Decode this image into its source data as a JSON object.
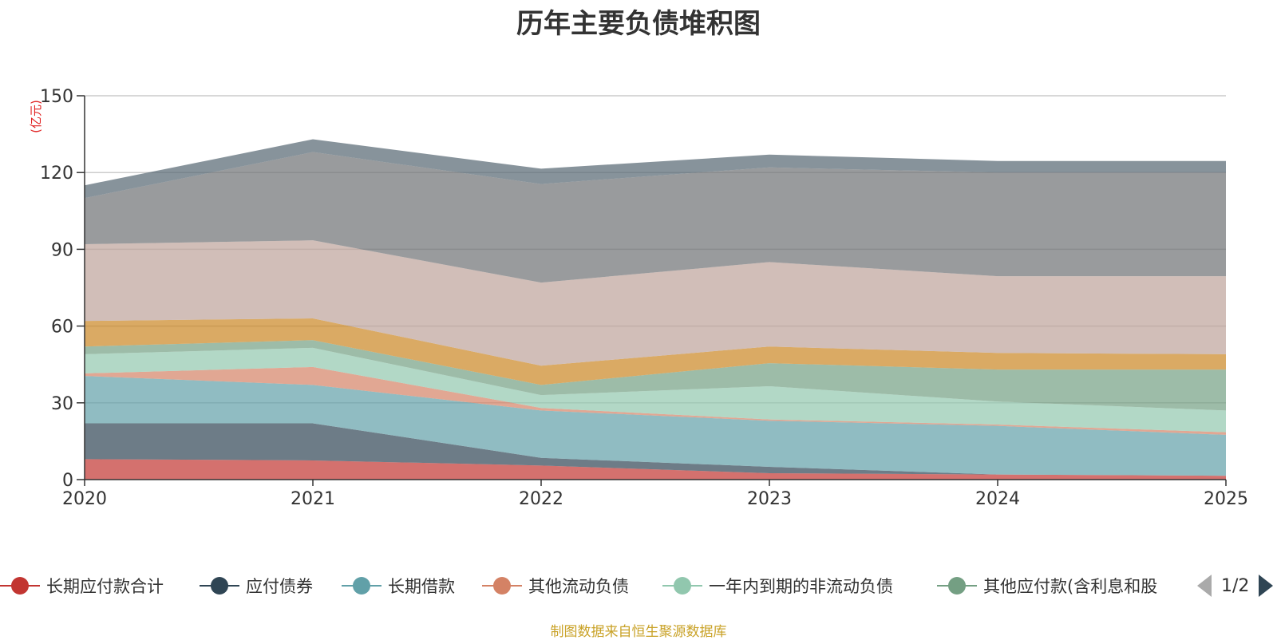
{
  "chart_data": {
    "type": "area",
    "stacked": true,
    "title": "历年主要负债堆积图",
    "unit": "(亿元)",
    "categories": [
      "2020",
      "2021",
      "2022",
      "2023",
      "2024",
      "2025"
    ],
    "ylim": [
      0,
      150
    ],
    "yticks": [
      0,
      30,
      60,
      90,
      120,
      150
    ],
    "grid": true,
    "series": [
      {
        "name": "长期应付款合计",
        "color": "#c23531",
        "values": [
          8,
          7.5,
          5.5,
          2.5,
          2,
          1.5
        ],
        "in_legend": true
      },
      {
        "name": "应付债券",
        "color": "#2f4554",
        "values": [
          14,
          14.5,
          3,
          2.5,
          0,
          0
        ],
        "in_legend": true
      },
      {
        "name": "长期借款",
        "color": "#61a0a8",
        "values": [
          18.5,
          15,
          18.5,
          18,
          19,
          16
        ],
        "in_legend": true
      },
      {
        "name": "其他流动负债",
        "color": "#d48265",
        "values": [
          1,
          7,
          1,
          0.5,
          0.5,
          1
        ],
        "in_legend": true
      },
      {
        "name": "一年内到期的非流动负债",
        "color": "#91c7ae",
        "values": [
          7.5,
          7.5,
          5,
          13,
          9,
          8.5
        ],
        "in_legend": true
      },
      {
        "name": "其他应付款(含利息和股",
        "color": "#749f83",
        "values": [
          3,
          3,
          4,
          9,
          12.5,
          16
        ],
        "in_legend": true
      },
      {
        "name": "",
        "color": "#ca8622",
        "values": [
          10,
          8.5,
          7.5,
          6.5,
          6.5,
          6
        ],
        "in_legend": false
      },
      {
        "name": "",
        "color": "#bda29a",
        "values": [
          30,
          30.5,
          32.5,
          33,
          30,
          30.5
        ],
        "in_legend": false
      },
      {
        "name": "",
        "color": "#6e7074",
        "values": [
          18,
          34.5,
          38.5,
          37,
          40.5,
          40.5
        ],
        "in_legend": false
      },
      {
        "name": "",
        "color": "#546570",
        "values": [
          5,
          5,
          6,
          5,
          4.5,
          4.5
        ],
        "in_legend": false
      }
    ]
  },
  "legend": {
    "items": [
      {
        "label": "长期应付款合计",
        "color": "#c23531"
      },
      {
        "label": "应付债券",
        "color": "#2f4554"
      },
      {
        "label": "长期借款",
        "color": "#61a0a8"
      },
      {
        "label": "其他流动负债",
        "color": "#d48265"
      },
      {
        "label": "一年内到期的非流动负债",
        "color": "#91c7ae"
      },
      {
        "label": "其他应付款(含利息和股",
        "color": "#749f83"
      }
    ],
    "page_text": "1/2"
  },
  "source_text": "制图数据来自恒生聚源数据库"
}
